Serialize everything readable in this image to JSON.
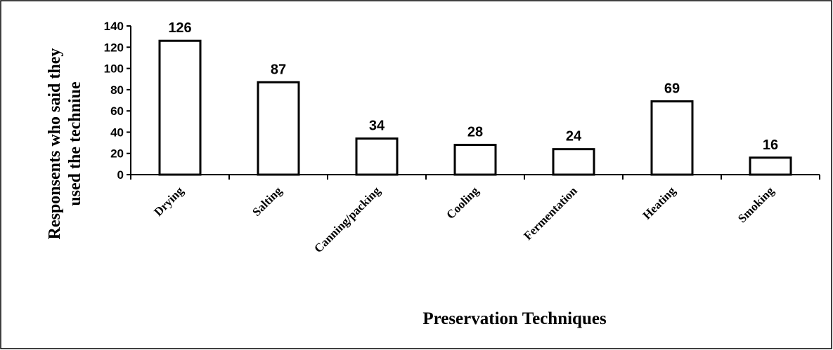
{
  "chart_data": {
    "type": "bar",
    "ylabel": [
      "Responsents who said they",
      "used the techniue"
    ],
    "xlabel": "Preservation Techniques",
    "categories": [
      "Drying",
      "Salting",
      "Canning/packing",
      "Cooling",
      "Fermentation",
      "Heating",
      "Smoking"
    ],
    "values": [
      126,
      87,
      34,
      28,
      24,
      69,
      16
    ],
    "color": "#ffffff",
    "edgecolor": "#000000",
    "ylim": [
      0,
      140
    ],
    "yticks": [
      0,
      20,
      40,
      60,
      80,
      100,
      120,
      140
    ],
    "grid": false
  }
}
